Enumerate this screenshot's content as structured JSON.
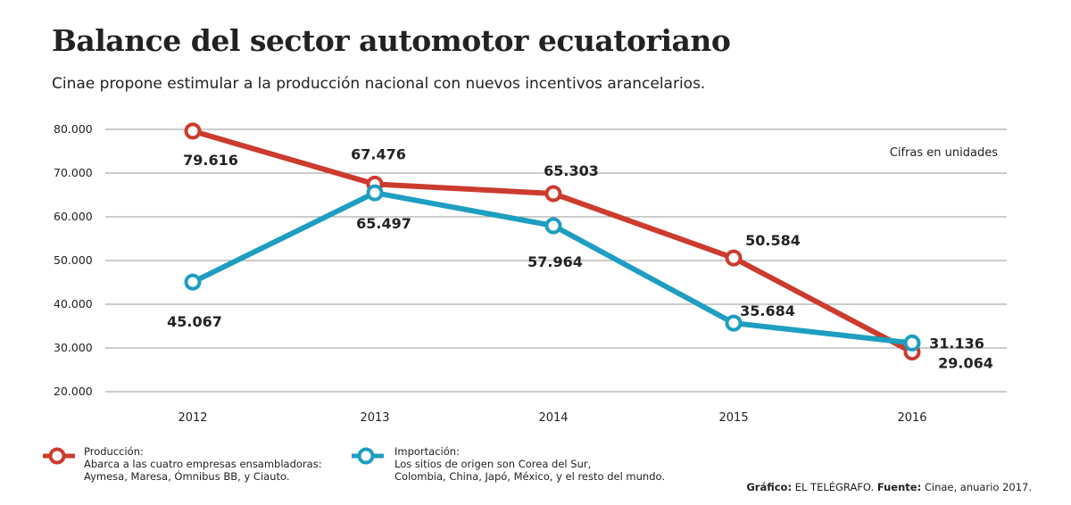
{
  "header": {
    "title": "Balance del sector automotor ecuatoriano",
    "subtitle": "Cinae propone estimular a la producción nacional con nuevos incentivos arancelarios."
  },
  "colors": {
    "produccion": "#cc3b2e",
    "importacion": "#1e9ec0",
    "grid": "#9a9a9a",
    "text": "#222222"
  },
  "chart_data": {
    "type": "line",
    "x": [
      "2012",
      "2013",
      "2014",
      "2015",
      "2016"
    ],
    "series": [
      {
        "name": "Producción",
        "values": [
          79616,
          67476,
          65303,
          50584,
          29064
        ],
        "labels": [
          "79.616",
          "67.476",
          "65.303",
          "50.584",
          "29.064"
        ]
      },
      {
        "name": "Importación",
        "values": [
          45067,
          65497,
          57964,
          35684,
          31136
        ],
        "labels": [
          "45.067",
          "65.497",
          "57.964",
          "35.684",
          "31.136"
        ]
      }
    ],
    "yticks": [
      "80.000",
      "70.000",
      "60.000",
      "50.000",
      "40.000",
      "30.000",
      "20.000"
    ],
    "ytick_values": [
      80000,
      70000,
      60000,
      50000,
      40000,
      30000,
      20000
    ],
    "ylim": [
      20000,
      80000
    ],
    "units_note": "Cifras en unidades",
    "grid": true
  },
  "legend": {
    "produccion": {
      "name": "Producción:",
      "desc1": "Abarca a las cuatro empresas ensambladoras:",
      "desc2": "Aymesa, Maresa, Ómnibus BB, y Ciauto."
    },
    "importacion": {
      "name": "Importación:",
      "desc1": "Los sitios de origen son Corea del Sur,",
      "desc2": "Colombia, China, Japó, México, y el resto del mundo."
    }
  },
  "credits": {
    "grafico_label": "Gráfico:",
    "grafico_value": "EL TELÉGRAFO.",
    "fuente_label": "Fuente:",
    "fuente_value": "Cinae, anuario 2017."
  }
}
